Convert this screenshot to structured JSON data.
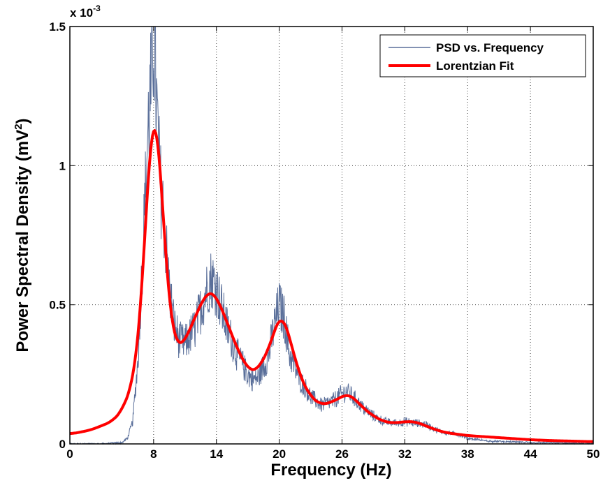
{
  "chart_data": {
    "type": "line",
    "xlabel": "Frequency (Hz)",
    "ylabel": "Power Spectral Density (mV",
    "ylabel_sup": "2",
    "ylabel_end": ")",
    "y_multiplier": "x 10",
    "y_multiplier_exp": "-3",
    "xlim": [
      0,
      50
    ],
    "ylim": [
      0,
      1.5
    ],
    "x_ticks": [
      0,
      8,
      14,
      20,
      26,
      32,
      38,
      44,
      50
    ],
    "x_tick_labels": [
      "0",
      "8",
      "14",
      "20",
      "26",
      "32",
      "38",
      "44",
      "50"
    ],
    "y_ticks": [
      0,
      0.5,
      1,
      1.5
    ],
    "y_tick_labels": [
      "0",
      "0.5",
      "1",
      "1.5"
    ],
    "grid": true,
    "legend_position": "top-right",
    "series": [
      {
        "name": "PSD vs. Frequency",
        "color": "#5a6f9a",
        "style": "noisy-thin",
        "x": [
          0,
          3,
          5,
          5.5,
          6,
          6.5,
          7,
          7.5,
          7.8,
          8,
          8.3,
          8.6,
          9,
          9.5,
          10,
          10.5,
          11,
          12,
          13,
          13.5,
          14,
          15,
          16,
          17,
          17.5,
          18,
          19,
          19.5,
          20,
          20.5,
          21,
          22,
          23,
          24,
          25,
          26,
          26.5,
          27,
          28,
          29,
          30,
          31,
          32,
          33,
          34,
          35,
          36,
          37,
          38,
          40,
          44,
          50
        ],
        "y": [
          0,
          0,
          0.005,
          0.02,
          0.08,
          0.3,
          0.72,
          1.15,
          1.3,
          1.48,
          1.2,
          0.95,
          0.8,
          0.56,
          0.42,
          0.37,
          0.36,
          0.42,
          0.55,
          0.6,
          0.56,
          0.42,
          0.32,
          0.25,
          0.23,
          0.24,
          0.32,
          0.42,
          0.5,
          0.45,
          0.32,
          0.23,
          0.17,
          0.14,
          0.15,
          0.18,
          0.19,
          0.17,
          0.13,
          0.1,
          0.08,
          0.075,
          0.08,
          0.075,
          0.07,
          0.05,
          0.04,
          0.035,
          0.02,
          0.01,
          0.005,
          0.002
        ]
      },
      {
        "name": "Lorentzian Fit",
        "color": "#ff0000",
        "style": "thick",
        "x": [
          0,
          2,
          4,
          5,
          6,
          6.5,
          7,
          7.5,
          8,
          8.5,
          9,
          9.5,
          10,
          10.5,
          11,
          12,
          13,
          13.5,
          14,
          15,
          16,
          17,
          17.5,
          18,
          19,
          20,
          20.3,
          21,
          22,
          23,
          24,
          25,
          26,
          26.5,
          27,
          28,
          29,
          30,
          31,
          32,
          33,
          34,
          35,
          36,
          38,
          40,
          42,
          44,
          46,
          48,
          50
        ],
        "y": [
          0.035,
          0.05,
          0.08,
          0.12,
          0.22,
          0.35,
          0.6,
          1.0,
          1.27,
          1.1,
          0.75,
          0.48,
          0.37,
          0.35,
          0.37,
          0.46,
          0.54,
          0.55,
          0.53,
          0.44,
          0.34,
          0.27,
          0.26,
          0.27,
          0.34,
          0.46,
          0.47,
          0.38,
          0.24,
          0.17,
          0.14,
          0.15,
          0.17,
          0.18,
          0.17,
          0.13,
          0.1,
          0.08,
          0.075,
          0.08,
          0.08,
          0.065,
          0.05,
          0.04,
          0.03,
          0.025,
          0.02,
          0.015,
          0.012,
          0.01,
          0.008
        ]
      }
    ]
  }
}
